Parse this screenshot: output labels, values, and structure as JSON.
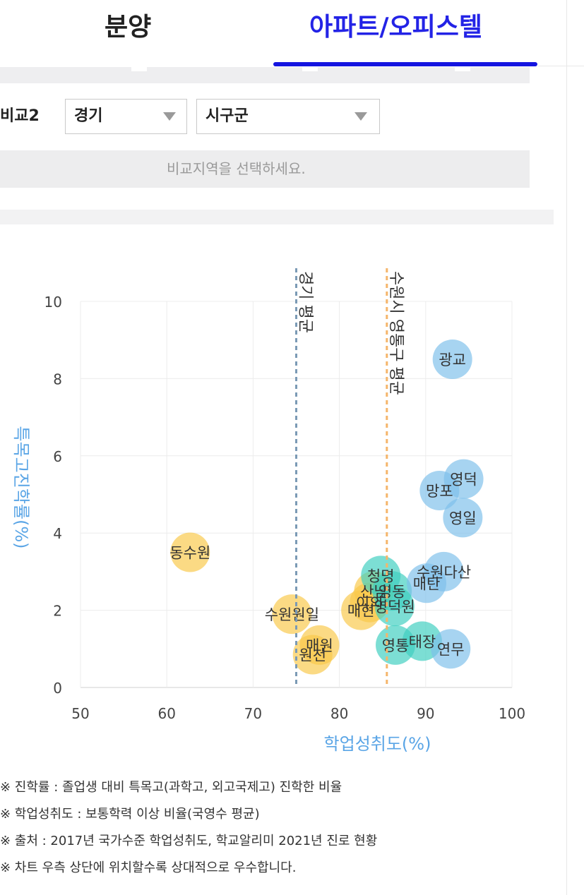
{
  "tabs": [
    {
      "label": "분양",
      "active": false
    },
    {
      "label": "아파트/오피스텔",
      "active": true
    }
  ],
  "colors": {
    "accent": "#1414e0",
    "avg_gyeonggi": "#7b9ab5",
    "avg_yeongtong": "#f5b56a"
  },
  "compare": {
    "label": "비교2",
    "province": {
      "value": "경기"
    },
    "city": {
      "value": "시구군"
    },
    "notice": "비교지역을 선택하세요."
  },
  "chart_data": {
    "type": "scatter",
    "xlabel": "학업성취도(%)",
    "ylabel": "특목고진학률(%)",
    "xlim": [
      50,
      100
    ],
    "ylim": [
      0,
      10
    ],
    "x_ticks": [
      50,
      60,
      70,
      80,
      90,
      100
    ],
    "y_ticks": [
      0,
      2,
      4,
      6,
      8,
      10
    ],
    "grid": true,
    "reference_lines": [
      {
        "label": "경기 평균",
        "x": 75,
        "color": "#7b9ab5"
      },
      {
        "label": "수원시 영통구 평균",
        "x": 85.5,
        "color": "#f5b56a"
      }
    ],
    "groups": [
      {
        "color": "#f9c84a",
        "points": [
          {
            "name": "동수원",
            "x": 62.7,
            "y": 3.5
          },
          {
            "name": "수원원일",
            "x": 74.5,
            "y": 1.9
          },
          {
            "name": "매원",
            "x": 77.7,
            "y": 1.1
          },
          {
            "name": "원천",
            "x": 76.9,
            "y": 0.85
          },
          {
            "name": "매현",
            "x": 82.5,
            "y": 2.0
          },
          {
            "name": "산남",
            "x": 84.0,
            "y": 2.5
          },
          {
            "name": "이의",
            "x": 83.5,
            "y": 2.2
          }
        ]
      },
      {
        "color": "#3ecfc0",
        "points": [
          {
            "name": "청명",
            "x": 84.8,
            "y": 2.9
          },
          {
            "name": "영동",
            "x": 86.1,
            "y": 2.5
          },
          {
            "name": "영덕원",
            "x": 86.4,
            "y": 2.1
          },
          {
            "name": "영통",
            "x": 86.5,
            "y": 1.1
          },
          {
            "name": "태장",
            "x": 89.6,
            "y": 1.2
          }
        ]
      },
      {
        "color": "#7ec0ea",
        "points": [
          {
            "name": "광교",
            "x": 93.1,
            "y": 8.5
          },
          {
            "name": "영덕",
            "x": 94.4,
            "y": 5.4
          },
          {
            "name": "망포",
            "x": 91.6,
            "y": 5.1
          },
          {
            "name": "영일",
            "x": 94.3,
            "y": 4.4
          },
          {
            "name": "수원다산",
            "x": 92.1,
            "y": 3.0
          },
          {
            "name": "매탄",
            "x": 90.1,
            "y": 2.7
          },
          {
            "name": "연무",
            "x": 92.9,
            "y": 1.0
          }
        ]
      }
    ]
  },
  "notes": [
    "※ 진학률 : 졸업생 대비 특목고(과학고, 외고국제고) 진학한 비율",
    "※ 학업성취도 : 보통학력 이상 비율(국영수 평균)",
    "※ 출처 : 2017년 국가수준 학업성취도, 학교알리미 2021년 진로 현황",
    "※ 차트 우측 상단에 위치할수록 상대적으로 우수합니다."
  ]
}
